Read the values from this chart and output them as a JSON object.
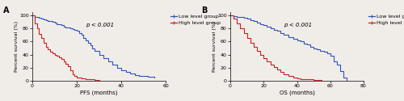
{
  "panel_A": {
    "label": "A",
    "xlabel": "PFS (months)",
    "ylabel": "Percent survival (%)",
    "xlim": [
      0,
      60
    ],
    "ylim": [
      0,
      105
    ],
    "xticks": [
      0,
      20,
      40,
      60
    ],
    "yticks": [
      0,
      20,
      40,
      60,
      80,
      100
    ],
    "pvalue": "p < 0.001",
    "low_x": [
      0,
      1,
      3,
      4,
      5,
      6,
      7,
      8,
      9,
      10,
      11,
      12,
      13,
      14,
      15,
      16,
      17,
      18,
      19,
      20,
      21,
      22,
      23,
      24,
      25,
      26,
      27,
      28,
      30,
      32,
      34,
      36,
      38,
      40,
      42,
      44,
      46,
      48,
      52,
      55
    ],
    "low_y": [
      100,
      98,
      96,
      95,
      94,
      93,
      92,
      91,
      90,
      89,
      87,
      86,
      85,
      83,
      82,
      81,
      80,
      79,
      78,
      77,
      73,
      70,
      65,
      62,
      58,
      54,
      50,
      46,
      40,
      35,
      30,
      25,
      20,
      16,
      13,
      11,
      9,
      8,
      6,
      5
    ],
    "high_x": [
      0,
      1,
      2,
      3,
      4,
      5,
      6,
      7,
      8,
      9,
      10,
      11,
      12,
      13,
      14,
      15,
      16,
      17,
      18,
      19,
      20,
      22,
      24,
      26,
      28,
      30
    ],
    "high_y": [
      100,
      88,
      80,
      72,
      65,
      58,
      52,
      48,
      44,
      42,
      40,
      38,
      36,
      33,
      30,
      26,
      22,
      16,
      10,
      7,
      5,
      4,
      3,
      2,
      1,
      0
    ],
    "low_color": "#3355bb",
    "high_color": "#cc2222",
    "legend_items": [
      "Low level group",
      "High level group"
    ]
  },
  "panel_B": {
    "label": "B",
    "xlabel": "OS (months)",
    "ylabel": "Percent survival (%)",
    "xlim": [
      0,
      80
    ],
    "ylim": [
      0,
      105
    ],
    "xticks": [
      0,
      20,
      40,
      60,
      80
    ],
    "yticks": [
      0,
      20,
      40,
      60,
      80,
      100
    ],
    "pvalue": "p < 0.001",
    "low_x": [
      0,
      2,
      4,
      6,
      8,
      10,
      12,
      14,
      16,
      18,
      20,
      22,
      24,
      26,
      28,
      30,
      32,
      35,
      38,
      40,
      42,
      44,
      46,
      48,
      50,
      52,
      54,
      56,
      58,
      60,
      62,
      64,
      66,
      68,
      70
    ],
    "low_y": [
      100,
      99,
      98,
      97,
      96,
      95,
      93,
      91,
      89,
      87,
      85,
      83,
      80,
      78,
      76,
      73,
      70,
      67,
      64,
      62,
      60,
      57,
      55,
      52,
      50,
      48,
      46,
      44,
      42,
      38,
      30,
      25,
      15,
      5,
      0
    ],
    "high_x": [
      0,
      2,
      4,
      6,
      8,
      10,
      12,
      14,
      16,
      18,
      20,
      22,
      24,
      26,
      28,
      30,
      32,
      35,
      38,
      40,
      42,
      45,
      50,
      55
    ],
    "high_y": [
      100,
      95,
      88,
      80,
      73,
      65,
      58,
      52,
      46,
      40,
      35,
      30,
      25,
      21,
      17,
      13,
      10,
      7,
      5,
      4,
      3,
      2,
      1,
      0
    ],
    "low_color": "#3355bb",
    "high_color": "#cc2222",
    "legend_items": [
      "Low level group",
      "High level group"
    ]
  },
  "fig_background": "#f0ece8",
  "legend_outside_color": "#f0ece8"
}
